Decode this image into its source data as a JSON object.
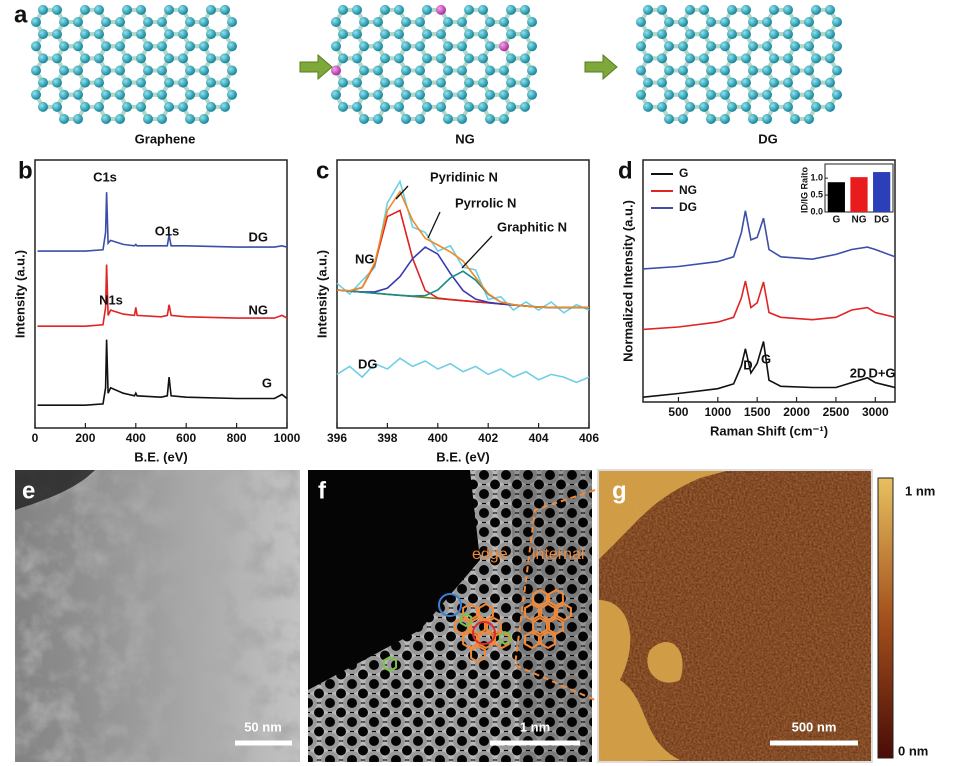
{
  "panels": {
    "a": {
      "label": "a",
      "captions": [
        "Graphene",
        "NG",
        "DG"
      ]
    },
    "e": {
      "label": "e",
      "scale_bar": "50 nm"
    },
    "f": {
      "label": "f",
      "regions": [
        "edge",
        "internal"
      ],
      "scale_bar": "1 nm"
    },
    "g": {
      "label": "g",
      "scale_bar": "500 nm",
      "colorbar_max": "1 nm",
      "colorbar_min": "0 nm"
    }
  },
  "chart_data": [
    {
      "type": "line",
      "panel_label": "b",
      "x_label": "B.E. (eV)",
      "y_label": "Intensity (a.u.)",
      "annotations": [
        "C1s",
        "O1s",
        "N1s"
      ],
      "xlim": [
        0,
        1000
      ],
      "xticks": [
        0,
        200,
        400,
        600,
        800,
        1000
      ],
      "ylim": [
        0,
        10
      ],
      "x": [
        10,
        200,
        270,
        280,
        284,
        290,
        300,
        350,
        395,
        400,
        405,
        500,
        525,
        532,
        540,
        600,
        800,
        950,
        980,
        1000
      ],
      "series": [
        {
          "name": "DG",
          "color": "#3c4fa8",
          "values": [
            6.6,
            6.6,
            6.65,
            7.3,
            8.8,
            6.9,
            7.0,
            6.85,
            6.8,
            6.85,
            6.8,
            6.8,
            6.8,
            7.2,
            6.8,
            6.8,
            6.75,
            6.75,
            6.8,
            6.75
          ]
        },
        {
          "name": "NG",
          "color": "#e02424",
          "values": [
            3.8,
            3.8,
            3.85,
            4.5,
            6.1,
            4.2,
            4.4,
            4.25,
            4.2,
            4.5,
            4.2,
            4.15,
            4.2,
            4.6,
            4.2,
            4.15,
            4.1,
            4.1,
            4.2,
            4.1
          ]
        },
        {
          "name": "G",
          "color": "#111111",
          "values": [
            0.85,
            0.85,
            0.9,
            1.5,
            3.3,
            1.3,
            1.5,
            1.3,
            1.2,
            1.3,
            1.2,
            1.15,
            1.2,
            1.9,
            1.2,
            1.15,
            1.1,
            1.1,
            1.25,
            1.1
          ]
        }
      ]
    },
    {
      "type": "line",
      "panel_label": "c",
      "x_label": "B.E. (eV)",
      "y_label": "Intensity (a.u.)",
      "xlim": [
        396,
        406
      ],
      "xticks": [
        396,
        398,
        400,
        402,
        404,
        406
      ],
      "ylim": [
        0,
        10
      ],
      "x": [
        396,
        396.5,
        397,
        397.5,
        398,
        398.5,
        399,
        399.5,
        400,
        400.5,
        401,
        401.5,
        402,
        402.5,
        403,
        403.5,
        404,
        404.5,
        405,
        405.5,
        406
      ],
      "series": [
        {
          "name": "NG",
          "color": "#6fcfe6",
          "values": [
            5.4,
            5.0,
            5.5,
            6.0,
            8.4,
            9.2,
            7.5,
            7.3,
            6.6,
            6.8,
            6.0,
            5.9,
            4.8,
            4.9,
            4.4,
            4.7,
            4.4,
            4.7,
            4.3,
            4.6,
            4.4
          ]
        },
        {
          "name": "DG",
          "color": "#6fcfe6",
          "values": [
            2.0,
            2.3,
            1.9,
            2.4,
            2.2,
            2.6,
            2.3,
            2.5,
            2.2,
            2.4,
            2.1,
            2.3,
            2.0,
            2.2,
            1.9,
            2.1,
            1.8,
            2.0,
            1.9,
            1.7,
            1.9
          ]
        },
        {
          "color": "#7a7a20",
          "values": [
            5.15,
            5.11,
            5.07,
            5.03,
            4.99,
            4.95,
            4.91,
            4.87,
            4.83,
            4.79,
            4.75,
            4.71,
            4.67,
            4.63,
            4.59,
            4.55,
            4.51,
            4.5,
            4.5,
            4.5,
            4.5
          ]
        },
        {
          "name": "Pyridinic N",
          "color": "#e02020",
          "values": [
            5.15,
            5.12,
            5.24,
            6.12,
            7.89,
            8.12,
            6.33,
            5.13,
            4.85,
            4.79,
            4.75,
            4.71,
            4.67,
            4.63,
            4.59,
            4.55,
            4.51,
            4.5,
            4.5,
            4.5,
            4.5
          ]
        },
        {
          "name": "Pyrrolic N",
          "color": "#3a3ab0",
          "values": [
            5.15,
            5.11,
            5.08,
            5.08,
            5.22,
            5.65,
            6.32,
            6.75,
            6.49,
            5.76,
            5.13,
            4.81,
            4.69,
            4.63,
            4.59,
            4.55,
            4.51,
            4.5,
            4.5,
            4.5,
            4.5
          ]
        },
        {
          "name": "Graphitic N",
          "color": "#178a8a",
          "values": [
            5.15,
            5.11,
            5.07,
            5.03,
            4.99,
            4.95,
            4.92,
            4.94,
            5.15,
            5.6,
            5.85,
            5.52,
            4.99,
            4.7,
            4.6,
            4.55,
            4.51,
            4.5,
            4.5,
            4.5,
            4.5
          ]
        },
        {
          "color": "#f08a24",
          "values": [
            5.15,
            5.12,
            5.25,
            6.17,
            8.12,
            8.82,
            7.75,
            7.08,
            6.83,
            6.57,
            6.23,
            5.62,
            5.01,
            4.7,
            4.6,
            4.55,
            4.51,
            4.5,
            4.5,
            4.5,
            4.5
          ]
        }
      ]
    },
    {
      "type": "line",
      "panel_label": "d",
      "x_label": "Raman Shift (cm⁻¹)",
      "y_label": "Normalized Intensity (a.u.)",
      "annotations": [
        "D",
        "G",
        "2D",
        "D+G"
      ],
      "legend": "upper left",
      "xlim": [
        50,
        3250
      ],
      "xticks": [
        500,
        1000,
        1500,
        2000,
        2500,
        3000
      ],
      "ylim": [
        0,
        10
      ],
      "x": [
        50,
        500,
        1000,
        1200,
        1300,
        1350,
        1420,
        1500,
        1580,
        1650,
        1800,
        2200,
        2500,
        2700,
        2900,
        3000,
        3250
      ],
      "series": [
        {
          "name": "G",
          "color": "#111111",
          "values": [
            0.2,
            0.35,
            0.55,
            0.75,
            1.5,
            2.2,
            1.2,
            1.6,
            2.5,
            0.9,
            0.65,
            0.6,
            0.6,
            0.8,
            1.0,
            0.8,
            0.6
          ]
        },
        {
          "name": "NG",
          "color": "#e02424",
          "values": [
            3.0,
            3.1,
            3.3,
            3.5,
            4.3,
            5.0,
            3.9,
            4.1,
            4.96,
            3.7,
            3.5,
            3.4,
            3.5,
            3.8,
            3.9,
            3.7,
            3.5
          ]
        },
        {
          "name": "DG",
          "color": "#3c4fa8",
          "values": [
            5.5,
            5.6,
            5.8,
            6.0,
            7.0,
            7.9,
            6.7,
            6.8,
            7.6,
            6.3,
            6.0,
            5.9,
            6.1,
            6.3,
            6.4,
            6.3,
            6.0
          ]
        }
      ]
    },
    {
      "type": "bar",
      "y_label": "ID/IG Raito",
      "categories": [
        "G",
        "NG",
        "DG"
      ],
      "values": [
        0.88,
        1.03,
        1.18
      ],
      "colors": [
        "#000000",
        "#e81c1c",
        "#2b3fb8"
      ],
      "ylim": [
        0,
        1.3
      ],
      "yticks": [
        {
          "value": 0,
          "label": "0.0"
        },
        {
          "value": 0.5,
          "label": "0.5"
        },
        {
          "value": 1,
          "label": "1.0"
        }
      ]
    }
  ]
}
